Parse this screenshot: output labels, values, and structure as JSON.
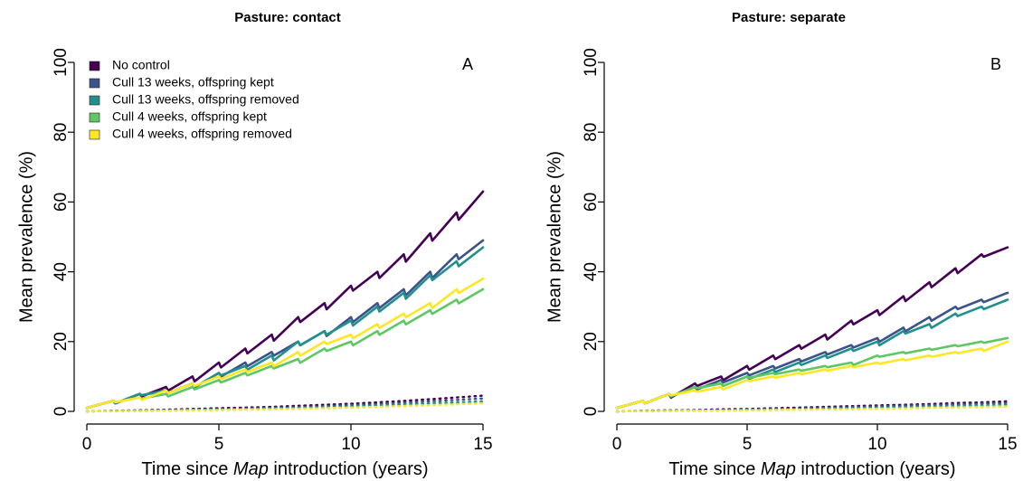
{
  "chart_data": [
    {
      "type": "line",
      "title": "Pasture: contact",
      "panel_label": "A",
      "xlabel_parts": [
        "Time since ",
        "Map",
        " introduction (years)"
      ],
      "ylabel": "Mean prevalence (%)",
      "xlim": [
        0,
        15
      ],
      "ylim": [
        0,
        100
      ],
      "x_ticks": [
        0,
        5,
        10,
        15
      ],
      "y_ticks": [
        0,
        20,
        40,
        60,
        80,
        100
      ],
      "grid": false,
      "legend": {
        "placement": "top-left",
        "entries": [
          {
            "label": "No control",
            "color": "#440154"
          },
          {
            "label": "Cull 13 weeks, offspring kept",
            "color": "#3B528B"
          },
          {
            "label": "Cull 13 weeks, offspring removed",
            "color": "#21908C"
          },
          {
            "label": "Cull 4 weeks, offspring kept",
            "color": "#5DC863"
          },
          {
            "label": "Cull 4 weeks, offspring removed",
            "color": "#FDE725"
          }
        ]
      },
      "series": [
        {
          "name": "No control",
          "style": "solid",
          "color": "#440154",
          "x": [
            0,
            1,
            2,
            3,
            4,
            5,
            6,
            7,
            8,
            9,
            10,
            11,
            12,
            13,
            14,
            15
          ],
          "values": [
            1,
            3,
            5,
            7,
            10,
            14,
            18,
            22,
            27,
            31,
            36,
            40,
            45,
            51,
            57,
            63
          ]
        },
        {
          "name": "Cull 13 weeks, offspring kept",
          "style": "solid",
          "color": "#3B528B",
          "x": [
            0,
            1,
            2,
            3,
            4,
            5,
            6,
            7,
            8,
            9,
            10,
            11,
            12,
            13,
            14,
            15
          ],
          "values": [
            1,
            3,
            5,
            6,
            8,
            11,
            14,
            17,
            20,
            23,
            27,
            31,
            35,
            40,
            45,
            49
          ]
        },
        {
          "name": "Cull 13 weeks, offspring removed",
          "style": "solid",
          "color": "#21908C",
          "x": [
            0,
            1,
            2,
            3,
            4,
            5,
            6,
            7,
            8,
            9,
            10,
            11,
            12,
            13,
            14,
            15
          ],
          "values": [
            1,
            3,
            5,
            6,
            8,
            11,
            13,
            16,
            20,
            23,
            26,
            30,
            34,
            39,
            43,
            47
          ]
        },
        {
          "name": "Cull 4 weeks, offspring kept",
          "style": "solid",
          "color": "#5DC863",
          "x": [
            0,
            1,
            2,
            3,
            4,
            5,
            6,
            7,
            8,
            9,
            10,
            11,
            12,
            13,
            14,
            15
          ],
          "values": [
            1,
            3,
            4,
            5,
            7,
            9,
            11,
            13,
            15,
            18,
            20,
            23,
            26,
            29,
            32,
            35
          ]
        },
        {
          "name": "No control",
          "style": "dotted",
          "color": "#440154",
          "x": [
            0,
            1,
            2,
            3,
            4,
            5,
            6,
            7,
            8,
            9,
            10,
            11,
            12,
            13,
            14,
            15
          ],
          "values": [
            0,
            0.2,
            0.3,
            0.5,
            0.7,
            0.9,
            1.1,
            1.3,
            1.6,
            1.9,
            2.2,
            2.6,
            3.0,
            3.5,
            4.0,
            4.5
          ]
        },
        {
          "name": "Cull 13 weeks, offspring kept",
          "style": "dotted",
          "color": "#3B528B",
          "x": [
            0,
            1,
            2,
            3,
            4,
            5,
            6,
            7,
            8,
            9,
            10,
            11,
            12,
            13,
            14,
            15
          ],
          "values": [
            0,
            0.1,
            0.2,
            0.3,
            0.5,
            0.6,
            0.8,
            1.0,
            1.2,
            1.5,
            1.8,
            2.1,
            2.5,
            2.9,
            3.3,
            3.7
          ]
        },
        {
          "name": "Cull 13 weeks, offspring removed",
          "style": "dotted",
          "color": "#21908C",
          "x": [
            0,
            1,
            2,
            3,
            4,
            5,
            6,
            7,
            8,
            9,
            10,
            11,
            12,
            13,
            14,
            15
          ],
          "values": [
            0,
            0.1,
            0.2,
            0.3,
            0.4,
            0.5,
            0.7,
            0.8,
            1.0,
            1.2,
            1.4,
            1.7,
            2.0,
            2.3,
            2.6,
            2.9
          ]
        },
        {
          "name": "Cull 4 weeks, offspring kept",
          "style": "dotted",
          "color": "#5DC863",
          "x": [
            0,
            1,
            2,
            3,
            4,
            5,
            6,
            7,
            8,
            9,
            10,
            11,
            12,
            13,
            14,
            15
          ],
          "values": [
            0,
            0.1,
            0.1,
            0.2,
            0.3,
            0.4,
            0.5,
            0.6,
            0.8,
            0.9,
            1.1,
            1.3,
            1.6,
            1.8,
            2.1,
            2.4
          ]
        },
        {
          "name": "Cull 4 weeks, offspring removed",
          "style": "dotted",
          "color": "#FDE725",
          "x": [
            0,
            1,
            2,
            3,
            4,
            5,
            6,
            7,
            8,
            9,
            10,
            11,
            12,
            13,
            14,
            15
          ],
          "values": [
            0,
            0.1,
            0.1,
            0.2,
            0.3,
            0.4,
            0.5,
            0.6,
            0.7,
            0.9,
            1.1,
            1.3,
            1.5,
            1.8,
            2.0,
            2.3
          ]
        },
        {
          "name": "Cull 4 weeks, offspring removed",
          "style": "solid",
          "color": "#FDE725",
          "x": [
            0,
            1,
            2,
            3,
            4,
            5,
            6,
            7,
            8,
            9,
            10,
            11,
            12,
            13,
            14,
            15
          ],
          "values": [
            1,
            3,
            4,
            6,
            8,
            10,
            12,
            14,
            17,
            20,
            22,
            25,
            28,
            31,
            35,
            38
          ]
        }
      ]
    },
    {
      "type": "line",
      "title": "Pasture: separate",
      "panel_label": "B",
      "xlabel_parts": [
        "Time since ",
        "Map",
        " introduction (years)"
      ],
      "ylabel": "Mean prevalence (%)",
      "xlim": [
        0,
        15
      ],
      "ylim": [
        0,
        100
      ],
      "x_ticks": [
        0,
        5,
        10,
        15
      ],
      "y_ticks": [
        0,
        20,
        40,
        60,
        80,
        100
      ],
      "grid": false,
      "legend": null,
      "series": [
        {
          "name": "No control",
          "style": "solid",
          "color": "#440154",
          "x": [
            0,
            1,
            2,
            3,
            4,
            5,
            6,
            7,
            8,
            9,
            10,
            11,
            12,
            13,
            14,
            15
          ],
          "values": [
            1,
            3,
            5,
            8,
            10,
            13,
            16,
            19,
            22,
            26,
            29,
            33,
            37,
            41,
            45,
            47
          ]
        },
        {
          "name": "Cull 13 weeks, offspring kept",
          "style": "solid",
          "color": "#3B528B",
          "x": [
            0,
            1,
            2,
            3,
            4,
            5,
            6,
            7,
            8,
            9,
            10,
            11,
            12,
            13,
            14,
            15
          ],
          "values": [
            1,
            3,
            5,
            7,
            9,
            11,
            13,
            15,
            17,
            19,
            21,
            24,
            27,
            30,
            32,
            34
          ]
        },
        {
          "name": "Cull 13 weeks, offspring removed",
          "style": "solid",
          "color": "#21908C",
          "x": [
            0,
            1,
            2,
            3,
            4,
            5,
            6,
            7,
            8,
            9,
            10,
            11,
            12,
            13,
            14,
            15
          ],
          "values": [
            1,
            3,
            5,
            7,
            8,
            10,
            12,
            14,
            16,
            18,
            20,
            23,
            25,
            28,
            30,
            32
          ]
        },
        {
          "name": "Cull 4 weeks, offspring kept",
          "style": "solid",
          "color": "#5DC863",
          "x": [
            0,
            1,
            2,
            3,
            4,
            5,
            6,
            7,
            8,
            9,
            10,
            11,
            12,
            13,
            14,
            15
          ],
          "values": [
            1,
            3,
            5,
            7,
            8,
            10,
            11,
            12,
            13,
            14,
            16,
            17,
            18,
            19,
            20,
            21
          ]
        },
        {
          "name": "No control",
          "style": "dotted",
          "color": "#440154",
          "x": [
            0,
            1,
            2,
            3,
            4,
            5,
            6,
            7,
            8,
            9,
            10,
            11,
            12,
            13,
            14,
            15
          ],
          "values": [
            0,
            0.2,
            0.3,
            0.4,
            0.6,
            0.7,
            0.9,
            1.1,
            1.3,
            1.5,
            1.7,
            1.9,
            2.1,
            2.4,
            2.6,
            2.9
          ]
        },
        {
          "name": "Cull 13 weeks, offspring kept",
          "style": "dotted",
          "color": "#3B528B",
          "x": [
            0,
            1,
            2,
            3,
            4,
            5,
            6,
            7,
            8,
            9,
            10,
            11,
            12,
            13,
            14,
            15
          ],
          "values": [
            0,
            0.1,
            0.2,
            0.3,
            0.4,
            0.5,
            0.7,
            0.8,
            1.0,
            1.2,
            1.4,
            1.6,
            1.8,
            2.0,
            2.2,
            2.4
          ]
        },
        {
          "name": "Cull 13 weeks, offspring removed",
          "style": "dotted",
          "color": "#21908C",
          "x": [
            0,
            1,
            2,
            3,
            4,
            5,
            6,
            7,
            8,
            9,
            10,
            11,
            12,
            13,
            14,
            15
          ],
          "values": [
            0,
            0.1,
            0.2,
            0.2,
            0.3,
            0.4,
            0.5,
            0.6,
            0.8,
            0.9,
            1.0,
            1.2,
            1.4,
            1.5,
            1.7,
            1.9
          ]
        },
        {
          "name": "Cull 4 weeks, offspring kept",
          "style": "dotted",
          "color": "#5DC863",
          "x": [
            0,
            1,
            2,
            3,
            4,
            5,
            6,
            7,
            8,
            9,
            10,
            11,
            12,
            13,
            14,
            15
          ],
          "values": [
            0,
            0.1,
            0.1,
            0.2,
            0.2,
            0.3,
            0.4,
            0.5,
            0.6,
            0.7,
            0.8,
            0.9,
            1.1,
            1.2,
            1.4,
            1.5
          ]
        },
        {
          "name": "Cull 4 weeks, offspring removed",
          "style": "dotted",
          "color": "#FDE725",
          "x": [
            0,
            1,
            2,
            3,
            4,
            5,
            6,
            7,
            8,
            9,
            10,
            11,
            12,
            13,
            14,
            15
          ],
          "values": [
            0,
            0.1,
            0.1,
            0.2,
            0.2,
            0.3,
            0.4,
            0.5,
            0.5,
            0.6,
            0.7,
            0.8,
            1.0,
            1.1,
            1.2,
            1.4
          ]
        },
        {
          "name": "Cull 4 weeks, offspring removed",
          "style": "solid",
          "color": "#FDE725",
          "x": [
            0,
            1,
            2,
            3,
            4,
            5,
            6,
            7,
            8,
            9,
            10,
            11,
            12,
            13,
            14,
            15
          ],
          "values": [
            1,
            3,
            5,
            6,
            7,
            9,
            10,
            11,
            12,
            13,
            14,
            15,
            16,
            17,
            18,
            20
          ]
        }
      ]
    }
  ]
}
